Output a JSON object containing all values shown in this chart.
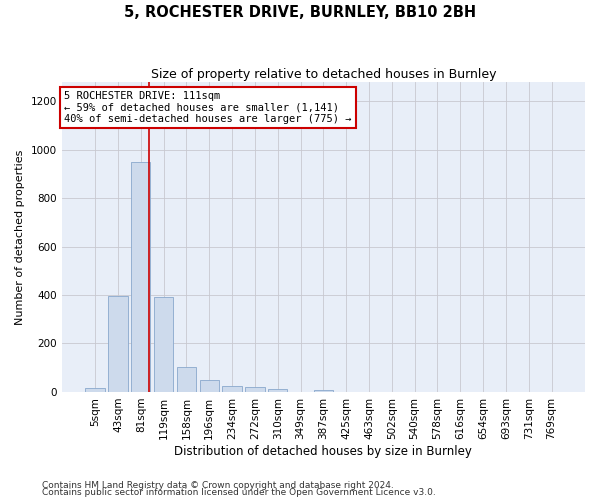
{
  "title": "5, ROCHESTER DRIVE, BURNLEY, BB10 2BH",
  "subtitle": "Size of property relative to detached houses in Burnley",
  "xlabel": "Distribution of detached houses by size in Burnley",
  "ylabel": "Number of detached properties",
  "footnote1": "Contains HM Land Registry data © Crown copyright and database right 2024.",
  "footnote2": "Contains public sector information licensed under the Open Government Licence v3.0.",
  "bar_color": "#cddaec",
  "bar_edgecolor": "#89a8cc",
  "grid_color": "#c8c8d0",
  "bg_color": "#e8eef8",
  "redline_x": 2.35,
  "annotation_text": "5 ROCHESTER DRIVE: 111sqm\n← 59% of detached houses are smaller (1,141)\n40% of semi-detached houses are larger (775) →",
  "annotation_box_color": "#ffffff",
  "annotation_box_edgecolor": "#cc0000",
  "categories": [
    "5sqm",
    "43sqm",
    "81sqm",
    "119sqm",
    "158sqm",
    "196sqm",
    "234sqm",
    "272sqm",
    "310sqm",
    "349sqm",
    "387sqm",
    "425sqm",
    "463sqm",
    "502sqm",
    "540sqm",
    "578sqm",
    "616sqm",
    "654sqm",
    "693sqm",
    "731sqm",
    "769sqm"
  ],
  "values": [
    15,
    395,
    950,
    390,
    105,
    50,
    25,
    20,
    12,
    0,
    10,
    0,
    0,
    0,
    0,
    0,
    0,
    0,
    0,
    0,
    0
  ],
  "ylim": [
    0,
    1280
  ],
  "yticks": [
    0,
    200,
    400,
    600,
    800,
    1000,
    1200
  ],
  "title_fontsize": 10.5,
  "subtitle_fontsize": 9,
  "xlabel_fontsize": 8.5,
  "ylabel_fontsize": 8,
  "tick_fontsize": 7.5,
  "annotation_fontsize": 7.5,
  "footnote_fontsize": 6.5
}
